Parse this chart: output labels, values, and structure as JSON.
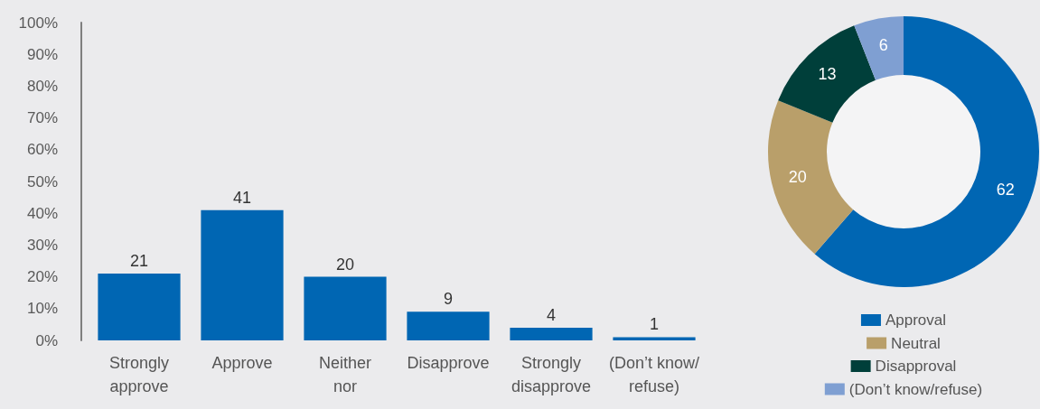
{
  "chart_data": [
    {
      "type": "bar",
      "categories": [
        "Strongly\napprove",
        "Approve",
        "Neither\nnor",
        "Disapprove",
        "Strongly\ndisapprove",
        "(Don’t know/\nrefuse)"
      ],
      "values": [
        21,
        41,
        20,
        9,
        4,
        1
      ],
      "color": "#0066b3",
      "ylim": [
        0,
        100
      ],
      "yticks": [
        {
          "value": 0,
          "label": "0%"
        },
        {
          "value": 10,
          "label": "10%"
        },
        {
          "value": 20,
          "label": "20%"
        },
        {
          "value": 30,
          "label": "30%"
        },
        {
          "value": 40,
          "label": "40%"
        },
        {
          "value": 50,
          "label": "50%"
        },
        {
          "value": 60,
          "label": "60%"
        },
        {
          "value": 70,
          "label": "70%"
        },
        {
          "value": 80,
          "label": "80%"
        },
        {
          "value": 90,
          "label": "90%"
        },
        {
          "value": 100,
          "label": "100%"
        }
      ],
      "data_labels": true
    },
    {
      "type": "donut",
      "categories": [
        "Approval",
        "Neutral",
        "Disapproval",
        "(Don’t know/refuse)"
      ],
      "values": [
        62,
        20,
        13,
        6
      ],
      "colors": [
        "#0066b3",
        "#b99f6a",
        "#003f3a",
        "#7f9fd2"
      ],
      "data_labels": true,
      "legend": "bottom"
    }
  ]
}
